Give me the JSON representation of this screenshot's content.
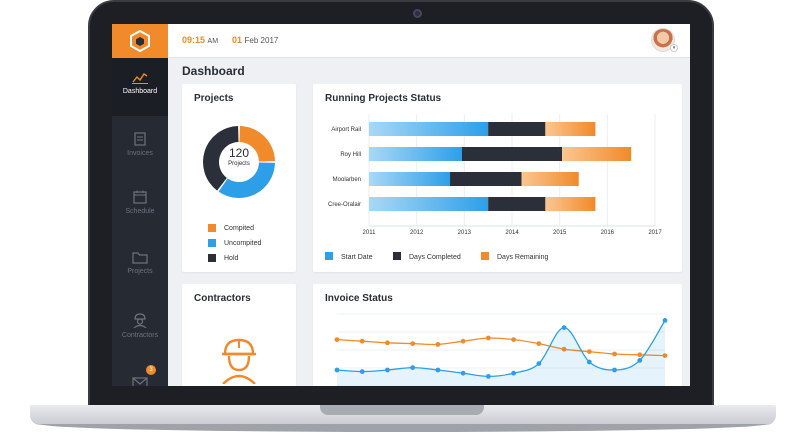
{
  "header": {
    "time": "09:15",
    "ampm": "AM",
    "day": "01",
    "month_year": "Feb 2017"
  },
  "sidebar": {
    "items": [
      {
        "label": "Dashboard",
        "icon": "chart-icon",
        "active": true
      },
      {
        "label": "Invoices",
        "icon": "invoice-icon",
        "active": false
      },
      {
        "label": "Schedule",
        "icon": "calendar-icon",
        "active": false
      },
      {
        "label": "Projects",
        "icon": "folder-icon",
        "active": false
      },
      {
        "label": "Contractors",
        "icon": "worker-icon",
        "active": false
      },
      {
        "label": "",
        "icon": "mail-icon",
        "active": false,
        "badge": "3"
      }
    ]
  },
  "main": {
    "title": "Dashboard",
    "projects_card": {
      "title": "Projects",
      "center_value": "120",
      "center_label": "Projects",
      "legend": [
        {
          "label": "Compited",
          "color": "#f08a2a"
        },
        {
          "label": "Uncompited",
          "color": "#2d9fe8"
        },
        {
          "label": "Hold",
          "color": "#2a2f3a"
        }
      ]
    },
    "running_card": {
      "title": "Running Projects Status"
    },
    "contractors_card": {
      "title": "Contractors"
    },
    "invoice_card": {
      "title": "Invoice Status"
    }
  },
  "colors": {
    "accent": "#f08a2a",
    "blue": "#2d9fe8",
    "dark": "#2a2f3a",
    "sidebar": "#262a33"
  },
  "chart_data": [
    {
      "type": "pie",
      "labels": [
        "Compited",
        "Uncompited",
        "Hold"
      ],
      "values": [
        25,
        35,
        40
      ],
      "colors": [
        "#f08a2a",
        "#2d9fe8",
        "#2a2f3a"
      ],
      "center_text": "120 Projects"
    },
    {
      "type": "bar",
      "orientation": "horizontal",
      "title": "Running Projects Status",
      "categories": [
        "Airport Rail",
        "Roy Hill",
        "Moolarben",
        "Cree-Oralair"
      ],
      "x_ticks": [
        "2011",
        "2012",
        "2013",
        "2014",
        "2015",
        "2016",
        "2017"
      ],
      "xlim": [
        2011,
        2017
      ],
      "series": [
        {
          "name": "Start Date",
          "color": "#2d9fe8",
          "starts": [
            2011,
            2011,
            2011,
            2011
          ],
          "ends": [
            2013.5,
            2012.95,
            2012.7,
            2013.5
          ]
        },
        {
          "name": "Days Completed",
          "color": "#2a2f3a",
          "starts": [
            2013.5,
            2012.95,
            2012.7,
            2013.5
          ],
          "ends": [
            2014.7,
            2015.05,
            2014.2,
            2014.7
          ]
        },
        {
          "name": "Days Remaining",
          "color": "#f08a2a",
          "starts": [
            2014.7,
            2015.05,
            2014.2,
            2014.7
          ],
          "ends": [
            2015.75,
            2016.5,
            2015.4,
            2015.75
          ]
        }
      ],
      "legend_position": "bottom"
    },
    {
      "type": "line",
      "title": "Invoice Status",
      "x": [
        0,
        1,
        2,
        3,
        4,
        5,
        6,
        7,
        8,
        9,
        10,
        11,
        12,
        13
      ],
      "series": [
        {
          "color": "#f08a2a",
          "values": [
            68,
            66,
            64,
            63,
            62,
            66,
            70,
            68,
            63,
            56,
            53,
            50,
            49,
            48
          ]
        },
        {
          "color": "#2d9fe8",
          "values": [
            30,
            28,
            30,
            33,
            30,
            26,
            22,
            26,
            38,
            83,
            40,
            30,
            42,
            92
          ]
        }
      ]
    }
  ]
}
